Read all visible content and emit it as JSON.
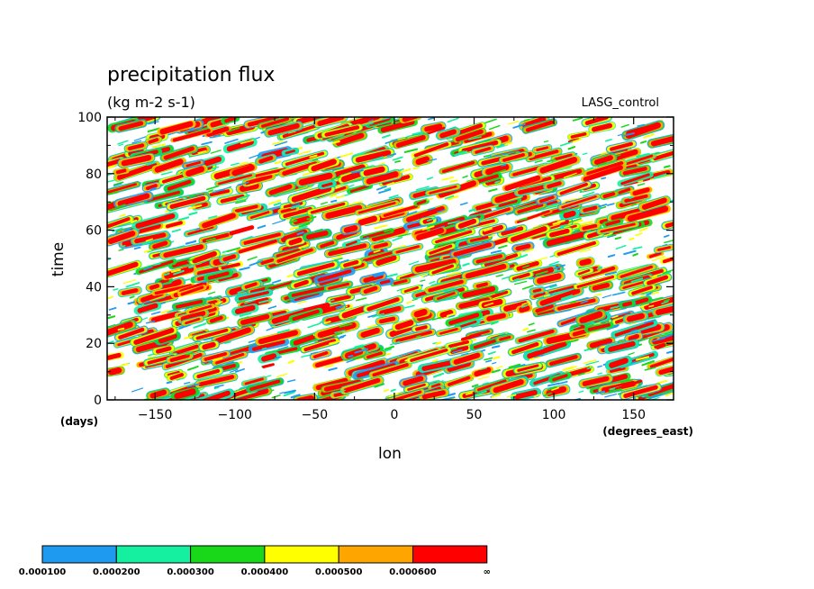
{
  "chart_data": {
    "type": "heatmap",
    "title": "precipitation flux",
    "subtitle": "(kg m-2 s-1)",
    "model_label": "LASG_control",
    "xlabel": "lon",
    "xunits": "(degrees_east)",
    "ylabel": "time",
    "yunits": "(days)",
    "xlim": [
      -180,
      175
    ],
    "ylim": [
      0,
      100
    ],
    "xticks": [
      -150,
      -100,
      -50,
      0,
      50,
      100,
      150
    ],
    "yticks": [
      0,
      20,
      40,
      60,
      80,
      100
    ],
    "grid": false,
    "colorbar": {
      "colors": [
        "#1e9bf0",
        "#14f0a0",
        "#19d719",
        "#ffff00",
        "#ffa500",
        "#ff0000"
      ],
      "boundary_labels": [
        "0.000100",
        "0.000200",
        "0.000300",
        "0.000400",
        "0.000500",
        "0.000600",
        "∞"
      ]
    },
    "pattern": "eastward-propagating precipitation streaks; red dominant high values scattered across all longitudes and times"
  }
}
